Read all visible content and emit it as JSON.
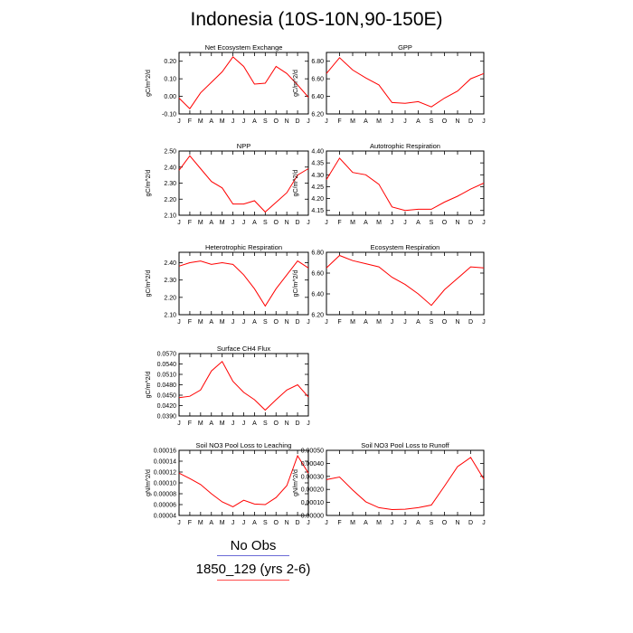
{
  "title": "Indonesia (10S-10N,90-150E)",
  "legend": {
    "no_obs": "No Obs",
    "run": "1850_129 (yrs 2-6)",
    "no_obs_color": "#6b6bd6",
    "run_color": "#ff0000"
  },
  "chart_data": [
    {
      "type": "line",
      "title": "Net Ecosystem Exchange",
      "ylabel": "gC/m^2/d",
      "x": [
        "J",
        "F",
        "M",
        "A",
        "M",
        "J",
        "J",
        "A",
        "S",
        "O",
        "N",
        "D",
        "J"
      ],
      "ylim": [
        -0.1,
        0.25
      ],
      "yticks": [
        "0.20",
        "0.10",
        "0.00",
        "-0.10"
      ],
      "ytick_values": [
        0.2,
        0.1,
        0.0,
        -0.1
      ],
      "series": [
        {
          "values": [
            -0.01,
            -0.07,
            0.02,
            0.08,
            0.14,
            0.225,
            0.17,
            0.07,
            0.075,
            0.17,
            0.13,
            0.065,
            -0.005
          ]
        }
      ]
    },
    {
      "type": "line",
      "title": "GPP",
      "ylabel": "gC/m^2/d",
      "x": [
        "J",
        "F",
        "M",
        "A",
        "M",
        "J",
        "J",
        "A",
        "S",
        "O",
        "N",
        "D",
        "J"
      ],
      "ylim": [
        6.2,
        6.9
      ],
      "yticks": [
        "6.80",
        "6.60",
        "6.40",
        "6.20"
      ],
      "ytick_values": [
        6.8,
        6.6,
        6.4,
        6.2
      ],
      "series": [
        {
          "values": [
            6.66,
            6.84,
            6.7,
            6.61,
            6.53,
            6.33,
            6.32,
            6.34,
            6.28,
            6.38,
            6.46,
            6.6,
            6.66
          ]
        }
      ]
    },
    {
      "type": "line",
      "title": "NPP",
      "ylabel": "gC/m^2/d",
      "x": [
        "J",
        "F",
        "M",
        "A",
        "M",
        "J",
        "J",
        "A",
        "S",
        "O",
        "N",
        "D",
        "J"
      ],
      "ylim": [
        2.1,
        2.5
      ],
      "yticks": [
        "2.50",
        "2.40",
        "2.30",
        "2.20",
        "2.10"
      ],
      "ytick_values": [
        2.5,
        2.4,
        2.3,
        2.2,
        2.1
      ],
      "series": [
        {
          "values": [
            2.38,
            2.47,
            2.39,
            2.31,
            2.27,
            2.17,
            2.17,
            2.19,
            2.12,
            2.18,
            2.24,
            2.35,
            2.39
          ]
        }
      ]
    },
    {
      "type": "line",
      "title": "Autotrophic Respiration",
      "ylabel": "gC/m^2/d",
      "x": [
        "J",
        "F",
        "M",
        "A",
        "M",
        "J",
        "J",
        "A",
        "S",
        "O",
        "N",
        "D",
        "J"
      ],
      "ylim": [
        4.13,
        4.4
      ],
      "yticks": [
        "4.40",
        "4.35",
        "4.30",
        "4.25",
        "4.20",
        "4.15"
      ],
      "ytick_values": [
        4.4,
        4.35,
        4.3,
        4.25,
        4.2,
        4.15
      ],
      "series": [
        {
          "values": [
            4.28,
            4.37,
            4.31,
            4.3,
            4.26,
            4.165,
            4.15,
            4.155,
            4.155,
            4.185,
            4.21,
            4.24,
            4.265
          ]
        }
      ]
    },
    {
      "type": "line",
      "title": "Heterotrophic Respiration",
      "ylabel": "gC/m^2/d",
      "x": [
        "J",
        "F",
        "M",
        "A",
        "M",
        "J",
        "J",
        "A",
        "S",
        "O",
        "N",
        "D",
        "J"
      ],
      "ylim": [
        2.1,
        2.46
      ],
      "yticks": [
        "2.40",
        "2.30",
        "2.20",
        "2.10"
      ],
      "ytick_values": [
        2.4,
        2.3,
        2.2,
        2.1
      ],
      "series": [
        {
          "values": [
            2.38,
            2.4,
            2.41,
            2.39,
            2.4,
            2.39,
            2.33,
            2.25,
            2.15,
            2.25,
            2.33,
            2.41,
            2.37
          ]
        }
      ]
    },
    {
      "type": "line",
      "title": "Ecosystem Respiration",
      "ylabel": "gC/m^2/d",
      "x": [
        "J",
        "F",
        "M",
        "A",
        "M",
        "J",
        "J",
        "A",
        "S",
        "O",
        "N",
        "D",
        "J"
      ],
      "ylim": [
        6.2,
        6.8
      ],
      "yticks": [
        "6.80",
        "6.60",
        "6.40",
        "6.20"
      ],
      "ytick_values": [
        6.8,
        6.6,
        6.4,
        6.2
      ],
      "series": [
        {
          "values": [
            6.65,
            6.77,
            6.72,
            6.69,
            6.66,
            6.56,
            6.49,
            6.4,
            6.29,
            6.44,
            6.55,
            6.66,
            6.65
          ]
        }
      ]
    },
    {
      "type": "line",
      "title": "Surface CH4 Flux",
      "ylabel": "gC/m^2/d",
      "x": [
        "J",
        "F",
        "M",
        "A",
        "M",
        "J",
        "J",
        "A",
        "S",
        "O",
        "N",
        "D",
        "J"
      ],
      "ylim": [
        0.039,
        0.057
      ],
      "yticks": [
        "0.0570",
        "0.0540",
        "0.0510",
        "0.0480",
        "0.0450",
        "0.0420",
        "0.0390"
      ],
      "ytick_values": [
        0.057,
        0.054,
        0.051,
        0.048,
        0.045,
        0.042,
        0.039
      ],
      "series": [
        {
          "values": [
            0.0443,
            0.0447,
            0.0465,
            0.052,
            0.0547,
            0.049,
            0.0458,
            0.0437,
            0.0407,
            0.0437,
            0.0465,
            0.048,
            0.0445
          ]
        }
      ]
    },
    {
      "type": "line",
      "title": "Soil NO3 Pool Loss to Leaching",
      "ylabel": "gN/m^2/d",
      "x": [
        "J",
        "F",
        "M",
        "A",
        "M",
        "J",
        "J",
        "A",
        "S",
        "O",
        "N",
        "D",
        "J"
      ],
      "ylim": [
        4e-05,
        0.00016
      ],
      "yticks": [
        "0.00016",
        "0.00014",
        "0.00012",
        "0.00010",
        "0.00008",
        "0.00006",
        "0.00004"
      ],
      "ytick_values": [
        0.00016,
        0.00014,
        0.00012,
        0.0001,
        8e-05,
        6e-05,
        4e-05
      ],
      "series": [
        {
          "values": [
            0.000118,
            0.000108,
            9.7e-05,
            8e-05,
            6.5e-05,
            5.6e-05,
            6.8e-05,
            6.1e-05,
            6e-05,
            7.3e-05,
            9.5e-05,
            0.00015,
            0.000118
          ]
        }
      ]
    },
    {
      "type": "line",
      "title": "Soil NO3 Pool Loss to Runoff",
      "ylabel": "gN/m^2/d",
      "x": [
        "J",
        "F",
        "M",
        "A",
        "M",
        "J",
        "J",
        "A",
        "S",
        "O",
        "N",
        "D",
        "J"
      ],
      "ylim": [
        0.0,
        0.0005
      ],
      "yticks": [
        "0.00050",
        "0.00040",
        "0.00030",
        "0.00020",
        "0.00010",
        "0.00000"
      ],
      "ytick_values": [
        0.0005,
        0.0004,
        0.0003,
        0.0002,
        0.0001,
        0.0
      ],
      "series": [
        {
          "values": [
            0.000275,
            0.000295,
            0.000195,
            0.000105,
            6e-05,
            4.5e-05,
            4.8e-05,
            6e-05,
            8e-05,
            0.000225,
            0.000375,
            0.000445,
            0.00028
          ]
        }
      ]
    }
  ]
}
